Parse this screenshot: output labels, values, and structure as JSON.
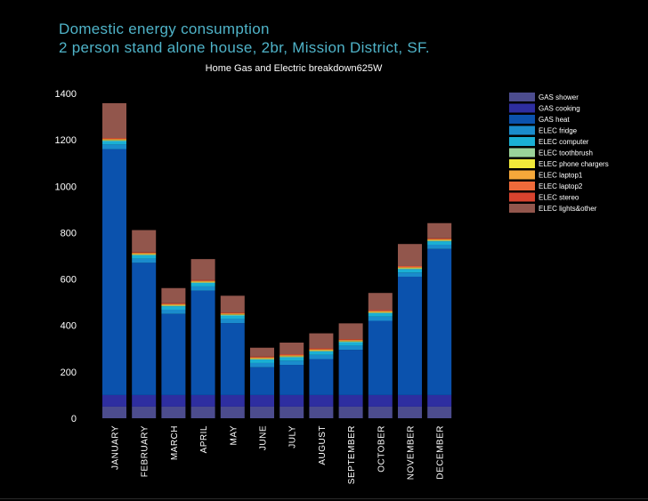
{
  "header": {
    "title_line1": "Domestic energy consumption",
    "title_line2": "2 person stand alone house, 2br, Mission District, SF."
  },
  "chart_data": {
    "type": "bar",
    "stacked": true,
    "title": "Home Gas and Electric breakdown625W",
    "xlabel": "",
    "ylabel": "",
    "ylim": [
      0,
      1400
    ],
    "yticks": [
      0,
      200,
      400,
      600,
      800,
      1000,
      1200,
      1400
    ],
    "grid": false,
    "legend_position": "top-right",
    "categories": [
      "JANUARY",
      "FEBRUARY",
      "MARCH",
      "APRIL",
      "MAY",
      "JUNE",
      "JULY",
      "AUGUST",
      "SEPTEMBER",
      "OCTOBER",
      "NOVEMBER",
      "DECEMBER"
    ],
    "series": [
      {
        "name": "GAS shower",
        "color": "#4c4c8e",
        "values": [
          50,
          50,
          50,
          50,
          50,
          50,
          50,
          50,
          50,
          50,
          50,
          50
        ]
      },
      {
        "name": "GAS cooking",
        "color": "#2e2ea0",
        "values": [
          50,
          50,
          50,
          50,
          50,
          50,
          50,
          50,
          50,
          50,
          50,
          50
        ]
      },
      {
        "name": "GAS heat",
        "color": "#0b52ad",
        "values": [
          1060,
          570,
          350,
          450,
          310,
          120,
          130,
          155,
          195,
          320,
          510,
          630
        ]
      },
      {
        "name": "ELEC fridge",
        "color": "#1a8ccc",
        "values": [
          20,
          18,
          18,
          18,
          18,
          18,
          18,
          18,
          18,
          18,
          18,
          18
        ]
      },
      {
        "name": "ELEC computer",
        "color": "#1ab0d4",
        "values": [
          15,
          15,
          15,
          15,
          15,
          15,
          15,
          15,
          15,
          15,
          15,
          15
        ]
      },
      {
        "name": "ELEC toothbrush",
        "color": "#9ad39a",
        "values": [
          3,
          3,
          3,
          3,
          3,
          3,
          3,
          3,
          3,
          3,
          3,
          3
        ]
      },
      {
        "name": "ELEC phone chargers",
        "color": "#f2ea3a",
        "values": [
          2,
          2,
          2,
          2,
          2,
          2,
          2,
          2,
          2,
          2,
          2,
          2
        ]
      },
      {
        "name": "ELEC laptop1",
        "color": "#f6a83a",
        "values": [
          3,
          3,
          3,
          3,
          3,
          3,
          3,
          3,
          3,
          3,
          3,
          3
        ]
      },
      {
        "name": "ELEC laptop2",
        "color": "#ef6a3a",
        "values": [
          3,
          3,
          3,
          3,
          3,
          3,
          3,
          3,
          3,
          3,
          3,
          3
        ]
      },
      {
        "name": "ELEC stereo",
        "color": "#d8432e",
        "values": [
          2,
          2,
          2,
          2,
          2,
          2,
          2,
          2,
          2,
          2,
          2,
          2
        ]
      },
      {
        "name": "ELEC lights&other",
        "color": "#92564c",
        "values": [
          150,
          95,
          65,
          90,
          72,
          38,
          50,
          65,
          68,
          74,
          95,
          65
        ]
      }
    ]
  }
}
